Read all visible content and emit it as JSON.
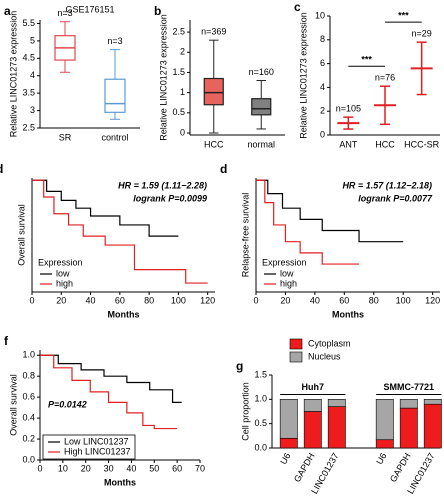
{
  "chart_data": [
    {
      "type": "box",
      "panel_label": "a",
      "title": "GSE176151",
      "ylabel": "Relative LINC01273 expression",
      "categories": [
        "SR",
        "control"
      ],
      "colors": [
        "#e0474c",
        "#5b9bd5"
      ],
      "filled": false,
      "boxes": [
        {
          "min": 4.1,
          "q1": 4.45,
          "median": 4.8,
          "q3": 5.15,
          "max": 5.55
        },
        {
          "min": 2.75,
          "q1": 2.95,
          "median": 3.2,
          "q3": 3.9,
          "max": 4.75
        }
      ],
      "n_labels": [
        "n=3",
        "n=3"
      ],
      "ylim": [
        2.5,
        5.6
      ],
      "yticks": [
        2.5,
        3,
        3.5,
        4,
        4.5,
        5,
        5.5
      ]
    },
    {
      "type": "box",
      "panel_label": "b",
      "ylabel": "Relative LINC01273 expression",
      "categories": [
        "HCC",
        "normal"
      ],
      "colors": [
        "#e8625e",
        "#808080"
      ],
      "filled": true,
      "boxes": [
        {
          "min": 0.0,
          "q1": 0.7,
          "median": 1.0,
          "q3": 1.35,
          "max": 2.3
        },
        {
          "min": 0.1,
          "q1": 0.45,
          "median": 0.6,
          "q3": 0.85,
          "max": 1.3
        }
      ],
      "n_labels": [
        "n=369",
        "n=160"
      ],
      "ylim": [
        -0.05,
        2.8
      ],
      "yticks": [
        0,
        0.5,
        1,
        1.5,
        2,
        2.5
      ]
    },
    {
      "type": "dotmean",
      "panel_label": "c",
      "ylabel": "Relative LINC01273 expression",
      "categories": [
        "ANT",
        "HCC",
        "HCC-SR"
      ],
      "color": "#e02020",
      "means": [
        1.0,
        2.5,
        5.6
      ],
      "sd": [
        0.5,
        1.6,
        2.2
      ],
      "n_labels": [
        "n=105",
        "n=76",
        "n=29"
      ],
      "significance": [
        {
          "label": "***",
          "between": [
            "ANT",
            "HCC"
          ]
        },
        {
          "label": "***",
          "between": [
            "HCC",
            "HCC-SR"
          ]
        }
      ],
      "ylim": [
        0,
        10
      ],
      "yticks": [
        0,
        2,
        4,
        6,
        8,
        10
      ]
    },
    {
      "type": "km",
      "panel_label": "d",
      "ylabel": "Overall survival",
      "xlabel": "Months",
      "annotations": [
        "HR = 1.59 (1.11−2.28)",
        "logrank P=0.0099"
      ],
      "annotation_corner": "top-right",
      "legend_title": "Expression",
      "legend": "bottom-left",
      "series": [
        {
          "name": "low",
          "color": "#000000",
          "x": [
            0,
            10,
            10,
            20,
            20,
            30,
            30,
            40,
            40,
            60,
            60,
            80,
            80,
            100
          ],
          "values": [
            1,
            1,
            0.9,
            0.9,
            0.82,
            0.82,
            0.75,
            0.75,
            0.68,
            0.68,
            0.6,
            0.6,
            0.5,
            0.5
          ]
        },
        {
          "name": "high",
          "color": "#e02020",
          "x": [
            0,
            8,
            8,
            15,
            15,
            25,
            25,
            35,
            35,
            50,
            50,
            70,
            70,
            105,
            105,
            120
          ],
          "values": [
            1,
            1,
            0.85,
            0.85,
            0.7,
            0.7,
            0.6,
            0.6,
            0.5,
            0.5,
            0.42,
            0.42,
            0.2,
            0.2,
            0.08,
            0.08
          ]
        }
      ],
      "xlim": [
        0,
        125
      ],
      "xticks": [
        0,
        20,
        40,
        60,
        80,
        100,
        120
      ],
      "ylim": [
        0,
        1.02
      ]
    },
    {
      "type": "km",
      "panel_label": "d",
      "ylabel": "Relapse-free survival",
      "xlabel": "Months",
      "annotations": [
        "HR = 1.57 (1.12−2.18)",
        "logrank P=0.0077"
      ],
      "annotation_corner": "top-right",
      "legend_title": "Expression",
      "legend": "bottom-left",
      "series": [
        {
          "name": "low",
          "color": "#000000",
          "x": [
            0,
            8,
            8,
            18,
            18,
            30,
            30,
            45,
            45,
            70,
            70,
            100
          ],
          "values": [
            1,
            1,
            0.88,
            0.88,
            0.75,
            0.75,
            0.65,
            0.65,
            0.55,
            0.55,
            0.45,
            0.45
          ]
        },
        {
          "name": "high",
          "color": "#e02020",
          "x": [
            0,
            6,
            6,
            12,
            12,
            20,
            20,
            30,
            30,
            45,
            45,
            70
          ],
          "values": [
            1,
            1,
            0.8,
            0.8,
            0.6,
            0.6,
            0.45,
            0.45,
            0.35,
            0.35,
            0.25,
            0.25
          ]
        }
      ],
      "xlim": [
        0,
        125
      ],
      "xticks": [
        0,
        20,
        40,
        60,
        80,
        100,
        120
      ],
      "ylim": [
        0,
        1.02
      ]
    },
    {
      "type": "km",
      "panel_label": "f",
      "ylabel": "Overall survival",
      "xlabel": "Months",
      "annotations": [
        "P=0.0142"
      ],
      "annotation_corner": "left",
      "legend": "bottom-left",
      "series": [
        {
          "name": "Low LINC01237",
          "color": "#000000",
          "x": [
            0,
            8,
            8,
            18,
            18,
            28,
            28,
            38,
            38,
            48,
            48,
            58,
            58,
            62
          ],
          "values": [
            1,
            1,
            0.92,
            0.92,
            0.86,
            0.86,
            0.8,
            0.8,
            0.74,
            0.74,
            0.67,
            0.67,
            0.55,
            0.55
          ]
        },
        {
          "name": "High LINC01237",
          "color": "#e02020",
          "x": [
            0,
            6,
            6,
            14,
            14,
            22,
            22,
            30,
            30,
            38,
            38,
            45,
            45,
            50,
            50,
            60
          ],
          "values": [
            1,
            1,
            0.88,
            0.88,
            0.76,
            0.76,
            0.65,
            0.65,
            0.55,
            0.55,
            0.45,
            0.45,
            0.33,
            0.33,
            0.3,
            0.3
          ]
        }
      ],
      "xlim": [
        0,
        70
      ],
      "xticks": [
        0,
        10,
        20,
        30,
        40,
        50,
        60,
        70
      ],
      "ylim": [
        0,
        1.05
      ],
      "yticks": [
        {
          "value": 0,
          "label": "0.0"
        },
        {
          "value": 0.2,
          "label": "0.2"
        },
        {
          "value": 0.4,
          "label": "0.4"
        },
        {
          "value": 0.6,
          "label": "0.6"
        },
        {
          "value": 0.8,
          "label": "0.8"
        },
        {
          "value": 1,
          "label": "1.0"
        }
      ]
    },
    {
      "type": "stacked",
      "panel_label": "g",
      "ylabel": "Cell proportion",
      "groups": [
        {
          "name": "Huh7",
          "categories": [
            "U6",
            "GAPDH",
            "LINC01237"
          ]
        },
        {
          "name": "SMMC-7721",
          "categories": [
            "U6",
            "GAPDH",
            "LINC01237"
          ]
        }
      ],
      "series": [
        {
          "name": "Cytoplasm",
          "color": "#ee1c1c",
          "values": [
            0.2,
            0.75,
            0.85,
            0.17,
            0.82,
            0.9
          ]
        },
        {
          "name": "Nucleus",
          "color": "#a6a6a6",
          "values": [
            0.8,
            0.25,
            0.15,
            0.83,
            0.18,
            0.1
          ]
        }
      ],
      "ylim": [
        0,
        1.5
      ],
      "yticks": [
        {
          "value": 0,
          "label": "0.0"
        },
        {
          "value": 0.5,
          "label": "0.5"
        },
        {
          "value": 1,
          "label": "1.0"
        },
        {
          "value": 1.5,
          "label": "1.5"
        }
      ]
    }
  ]
}
